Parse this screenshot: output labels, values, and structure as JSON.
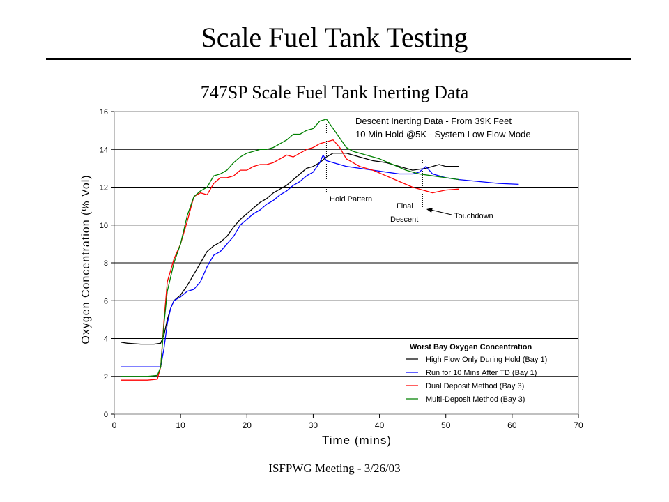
{
  "slide": {
    "title": "Scale Fuel Tank Testing",
    "footer": "ISFPWG Meeting - 3/26/03"
  },
  "chart_data": {
    "type": "line",
    "title": "747SP Scale Fuel Tank Inerting Data",
    "xlabel": "Time (mins)",
    "ylabel": "Oxygen Concentration (% Vol)",
    "xlim": [
      0,
      70
    ],
    "ylim": [
      0,
      16
    ],
    "xticks": [
      "0",
      "10",
      "20",
      "30",
      "40",
      "50",
      "60",
      "70"
    ],
    "yticks": [
      "0",
      "2",
      "4",
      "6",
      "8",
      "10",
      "12",
      "14",
      "16"
    ],
    "grid": "horizontal",
    "annotation_title_lines": [
      "Descent Inerting Data - From 39K Feet",
      "10 Min Hold @5K - System Low Flow Mode"
    ],
    "annotations": [
      {
        "text": "Hold Pattern",
        "x": 32
      },
      {
        "text": "Final Descent",
        "lines": [
          "Final",
          "Descent"
        ],
        "x": 46.5
      },
      {
        "text": "Touchdown"
      }
    ],
    "legend_title": "Worst Bay Oxygen Concentration",
    "legend_position": "bottom-right",
    "series": [
      {
        "name": "High Flow Only During Hold (Bay 1)",
        "color": "#000000",
        "points": [
          [
            1,
            3.8
          ],
          [
            2,
            3.75
          ],
          [
            4,
            3.7
          ],
          [
            6,
            3.7
          ],
          [
            7,
            3.75
          ],
          [
            7.5,
            4.2
          ],
          [
            8,
            5
          ],
          [
            8.5,
            5.6
          ],
          [
            9,
            6
          ],
          [
            10,
            6.3
          ],
          [
            11,
            6.8
          ],
          [
            12,
            7.4
          ],
          [
            13,
            8
          ],
          [
            14,
            8.6
          ],
          [
            15,
            8.9
          ],
          [
            16,
            9.1
          ],
          [
            17,
            9.4
          ],
          [
            18,
            9.9
          ],
          [
            19,
            10.3
          ],
          [
            20,
            10.6
          ],
          [
            21,
            10.9
          ],
          [
            22,
            11.2
          ],
          [
            23,
            11.4
          ],
          [
            24,
            11.7
          ],
          [
            25,
            11.9
          ],
          [
            26,
            12.1
          ],
          [
            27,
            12.4
          ],
          [
            28,
            12.7
          ],
          [
            29,
            13
          ],
          [
            30,
            13.1
          ],
          [
            31,
            13.3
          ],
          [
            32,
            13.6
          ],
          [
            33,
            13.8
          ],
          [
            35,
            13.8
          ],
          [
            37,
            13.6
          ],
          [
            39,
            13.4
          ],
          [
            41,
            13.3
          ],
          [
            43,
            13.1
          ],
          [
            45,
            12.9
          ],
          [
            47,
            13
          ],
          [
            48,
            13.1
          ],
          [
            49,
            13.2
          ],
          [
            50,
            13.1
          ],
          [
            52,
            13.1
          ]
        ]
      },
      {
        "name": "Run for 10 Mins After TD (Bay 1)",
        "color": "#0000ff",
        "points": [
          [
            1,
            2.5
          ],
          [
            3,
            2.5
          ],
          [
            5,
            2.5
          ],
          [
            7,
            2.5
          ],
          [
            7.5,
            3.5
          ],
          [
            8,
            4.8
          ],
          [
            8.5,
            5.6
          ],
          [
            9,
            6
          ],
          [
            10,
            6.2
          ],
          [
            11,
            6.5
          ],
          [
            12,
            6.6
          ],
          [
            13,
            7
          ],
          [
            14,
            7.8
          ],
          [
            15,
            8.4
          ],
          [
            16,
            8.6
          ],
          [
            17,
            9
          ],
          [
            18,
            9.4
          ],
          [
            19,
            10
          ],
          [
            20,
            10.3
          ],
          [
            21,
            10.6
          ],
          [
            22,
            10.8
          ],
          [
            23,
            11.1
          ],
          [
            24,
            11.3
          ],
          [
            25,
            11.6
          ],
          [
            26,
            11.8
          ],
          [
            27,
            12.1
          ],
          [
            28,
            12.3
          ],
          [
            29,
            12.6
          ],
          [
            30,
            12.8
          ],
          [
            31,
            13.3
          ],
          [
            31.5,
            13.7
          ],
          [
            32,
            13.4
          ],
          [
            33,
            13.3
          ],
          [
            35,
            13.1
          ],
          [
            37,
            13
          ],
          [
            39,
            12.9
          ],
          [
            41,
            12.8
          ],
          [
            43,
            12.7
          ],
          [
            45,
            12.7
          ],
          [
            46,
            12.8
          ],
          [
            47,
            13.1
          ],
          [
            48,
            12.7
          ],
          [
            50,
            12.5
          ],
          [
            52,
            12.4
          ],
          [
            55,
            12.3
          ],
          [
            58,
            12.2
          ],
          [
            61,
            12.15
          ]
        ]
      },
      {
        "name": "Dual Deposit Method (Bay 3)",
        "color": "#ff0000",
        "points": [
          [
            1,
            1.8
          ],
          [
            3,
            1.8
          ],
          [
            5,
            1.8
          ],
          [
            6.5,
            1.85
          ],
          [
            7,
            2.5
          ],
          [
            7.5,
            5
          ],
          [
            8,
            7
          ],
          [
            9,
            8.2
          ],
          [
            10,
            9
          ],
          [
            11,
            10.2
          ],
          [
            12,
            11.5
          ],
          [
            13,
            11.7
          ],
          [
            14,
            11.6
          ],
          [
            15,
            12.2
          ],
          [
            16,
            12.5
          ],
          [
            17,
            12.5
          ],
          [
            18,
            12.6
          ],
          [
            19,
            12.9
          ],
          [
            20,
            12.9
          ],
          [
            21,
            13.1
          ],
          [
            22,
            13.2
          ],
          [
            23,
            13.2
          ],
          [
            24,
            13.3
          ],
          [
            25,
            13.5
          ],
          [
            26,
            13.7
          ],
          [
            27,
            13.6
          ],
          [
            28,
            13.8
          ],
          [
            29,
            14
          ],
          [
            30,
            14.1
          ],
          [
            31,
            14.3
          ],
          [
            32,
            14.4
          ],
          [
            33,
            14.5
          ],
          [
            34,
            14.1
          ],
          [
            35,
            13.5
          ],
          [
            37,
            13.1
          ],
          [
            39,
            12.9
          ],
          [
            41,
            12.6
          ],
          [
            43,
            12.3
          ],
          [
            45,
            12
          ],
          [
            46,
            11.9
          ],
          [
            47,
            11.8
          ],
          [
            48,
            11.7
          ],
          [
            50,
            11.85
          ],
          [
            52,
            11.9
          ]
        ]
      },
      {
        "name": "Multi-Deposit Method (Bay 3)",
        "color": "#008000",
        "points": [
          [
            1,
            2
          ],
          [
            3,
            2
          ],
          [
            5,
            2
          ],
          [
            6.5,
            2.05
          ],
          [
            7,
            2.5
          ],
          [
            7.5,
            4.8
          ],
          [
            8,
            6.5
          ],
          [
            9,
            8
          ],
          [
            10,
            9
          ],
          [
            11,
            10.5
          ],
          [
            12,
            11.5
          ],
          [
            13,
            11.8
          ],
          [
            14,
            12
          ],
          [
            15,
            12.6
          ],
          [
            16,
            12.7
          ],
          [
            17,
            12.9
          ],
          [
            18,
            13.3
          ],
          [
            19,
            13.6
          ],
          [
            20,
            13.8
          ],
          [
            21,
            13.9
          ],
          [
            22,
            14
          ],
          [
            23,
            14
          ],
          [
            24,
            14.1
          ],
          [
            25,
            14.3
          ],
          [
            26,
            14.5
          ],
          [
            27,
            14.8
          ],
          [
            28,
            14.8
          ],
          [
            29,
            15
          ],
          [
            30,
            15.1
          ],
          [
            31,
            15.5
          ],
          [
            32,
            15.6
          ],
          [
            33,
            15.1
          ],
          [
            34,
            14.6
          ],
          [
            35,
            14.1
          ],
          [
            36,
            13.9
          ],
          [
            38,
            13.7
          ],
          [
            40,
            13.5
          ],
          [
            42,
            13.2
          ],
          [
            44,
            12.9
          ],
          [
            46,
            12.7
          ],
          [
            48,
            12.6
          ],
          [
            50,
            12.5
          ],
          [
            52,
            12.4
          ]
        ]
      }
    ]
  }
}
